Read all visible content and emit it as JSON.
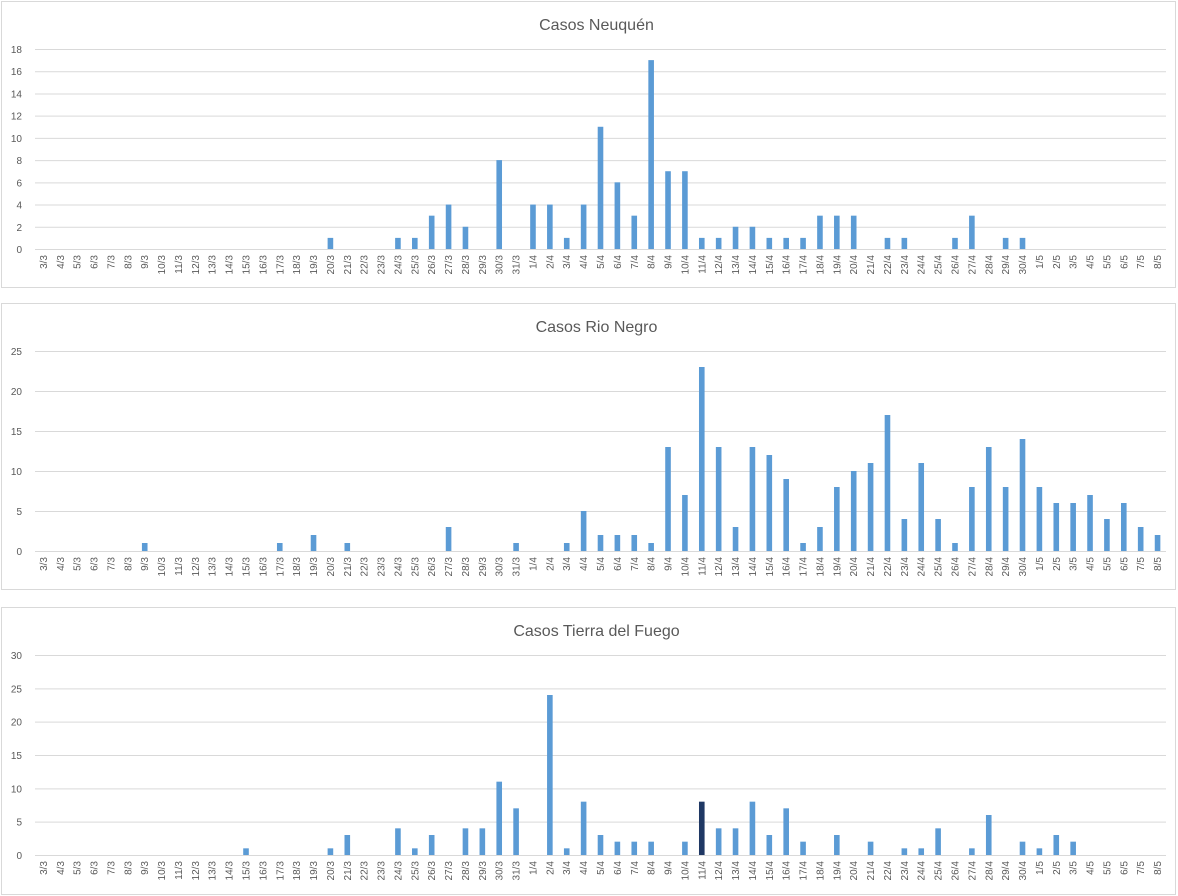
{
  "colors": {
    "bar": "#5b9bd5",
    "highlight_bar": "#1f3864",
    "grid": "#d9d9d9",
    "text": "#595959",
    "border": "#d9d9d9"
  },
  "chart_data": [
    {
      "type": "bar",
      "title": "Casos Neuquén",
      "categories": [
        "3/3",
        "4/3",
        "5/3",
        "6/3",
        "7/3",
        "8/3",
        "9/3",
        "10/3",
        "11/3",
        "12/3",
        "13/3",
        "14/3",
        "15/3",
        "16/3",
        "17/3",
        "18/3",
        "19/3",
        "20/3",
        "21/3",
        "22/3",
        "23/3",
        "24/3",
        "25/3",
        "26/3",
        "27/3",
        "28/3",
        "29/3",
        "30/3",
        "31/3",
        "1/4",
        "2/4",
        "3/4",
        "4/4",
        "5/4",
        "6/4",
        "7/4",
        "8/4",
        "9/4",
        "10/4",
        "11/4",
        "12/4",
        "13/4",
        "14/4",
        "15/4",
        "16/4",
        "17/4",
        "18/4",
        "19/4",
        "20/4",
        "21/4",
        "22/4",
        "23/4",
        "24/4",
        "25/4",
        "26/4",
        "27/4",
        "28/4",
        "29/4",
        "30/4",
        "1/5",
        "2/5",
        "3/5",
        "4/5",
        "5/5",
        "6/5",
        "7/5",
        "8/5"
      ],
      "values": [
        0,
        0,
        0,
        0,
        0,
        0,
        0,
        0,
        0,
        0,
        0,
        0,
        0,
        0,
        0,
        0,
        0,
        1,
        0,
        0,
        0,
        1,
        1,
        3,
        4,
        2,
        0,
        8,
        0,
        4,
        4,
        1,
        4,
        11,
        6,
        3,
        17,
        7,
        7,
        1,
        1,
        2,
        2,
        1,
        1,
        1,
        3,
        3,
        3,
        0,
        1,
        1,
        0,
        0,
        1,
        3,
        0,
        1,
        1,
        0,
        0,
        0,
        0,
        0,
        0,
        0,
        0
      ],
      "yticks": [
        0,
        2,
        4,
        6,
        8,
        10,
        12,
        14,
        16,
        18
      ],
      "ylim": [
        0,
        18
      ],
      "grid": true
    },
    {
      "type": "bar",
      "title": "Casos Rio Negro",
      "categories": [
        "3/3",
        "4/3",
        "5/3",
        "6/3",
        "7/3",
        "8/3",
        "9/3",
        "10/3",
        "11/3",
        "12/3",
        "13/3",
        "14/3",
        "15/3",
        "16/3",
        "17/3",
        "18/3",
        "19/3",
        "20/3",
        "21/3",
        "22/3",
        "23/3",
        "24/3",
        "25/3",
        "26/3",
        "27/3",
        "28/3",
        "29/3",
        "30/3",
        "31/3",
        "1/4",
        "2/4",
        "3/4",
        "4/4",
        "5/4",
        "6/4",
        "7/4",
        "8/4",
        "9/4",
        "10/4",
        "11/4",
        "12/4",
        "13/4",
        "14/4",
        "15/4",
        "16/4",
        "17/4",
        "18/4",
        "19/4",
        "20/4",
        "21/4",
        "22/4",
        "23/4",
        "24/4",
        "25/4",
        "26/4",
        "27/4",
        "28/4",
        "29/4",
        "30/4",
        "1/5",
        "2/5",
        "3/5",
        "4/5",
        "5/5",
        "6/5",
        "7/5",
        "8/5"
      ],
      "values": [
        0,
        0,
        0,
        0,
        0,
        0,
        1,
        0,
        0,
        0,
        0,
        0,
        0,
        0,
        1,
        0,
        2,
        0,
        1,
        0,
        0,
        0,
        0,
        0,
        3,
        0,
        0,
        0,
        1,
        0,
        0,
        1,
        5,
        2,
        2,
        2,
        1,
        13,
        7,
        23,
        13,
        3,
        13,
        12,
        9,
        1,
        3,
        8,
        10,
        11,
        17,
        4,
        11,
        4,
        1,
        8,
        13,
        8,
        14,
        8,
        6,
        6,
        7,
        4,
        6,
        3,
        2
      ],
      "yticks": [
        0,
        5,
        10,
        15,
        20,
        25
      ],
      "ylim": [
        0,
        25
      ],
      "grid": true
    },
    {
      "type": "bar",
      "title": "Casos Tierra del Fuego",
      "categories": [
        "3/3",
        "4/3",
        "5/3",
        "6/3",
        "7/3",
        "8/3",
        "9/3",
        "10/3",
        "11/3",
        "12/3",
        "13/3",
        "14/3",
        "15/3",
        "16/3",
        "17/3",
        "18/3",
        "19/3",
        "20/3",
        "21/3",
        "22/3",
        "23/3",
        "24/3",
        "25/3",
        "26/3",
        "27/3",
        "28/3",
        "29/3",
        "30/3",
        "31/3",
        "1/4",
        "2/4",
        "3/4",
        "4/4",
        "5/4",
        "6/4",
        "7/4",
        "8/4",
        "9/4",
        "10/4",
        "11/4",
        "12/4",
        "13/4",
        "14/4",
        "15/4",
        "16/4",
        "17/4",
        "18/4",
        "19/4",
        "20/4",
        "21/4",
        "22/4",
        "23/4",
        "24/4",
        "25/4",
        "26/4",
        "27/4",
        "28/4",
        "29/4",
        "30/4",
        "1/5",
        "2/5",
        "3/5",
        "4/5",
        "5/5",
        "6/5",
        "7/5",
        "8/5"
      ],
      "values": [
        0,
        0,
        0,
        0,
        0,
        0,
        0,
        0,
        0,
        0,
        0,
        0,
        1,
        0,
        0,
        0,
        0,
        1,
        3,
        0,
        0,
        4,
        1,
        3,
        0,
        4,
        4,
        11,
        7,
        0,
        24,
        1,
        8,
        3,
        2,
        2,
        2,
        0,
        2,
        8,
        4,
        4,
        8,
        3,
        7,
        2,
        0,
        3,
        0,
        2,
        0,
        1,
        1,
        4,
        0,
        1,
        6,
        0,
        2,
        1,
        3,
        2,
        0,
        0,
        0,
        0,
        0
      ],
      "highlight_category": "11/4",
      "yticks": [
        0,
        5,
        10,
        15,
        20,
        25,
        30
      ],
      "ylim": [
        0,
        30
      ],
      "grid": true
    }
  ]
}
